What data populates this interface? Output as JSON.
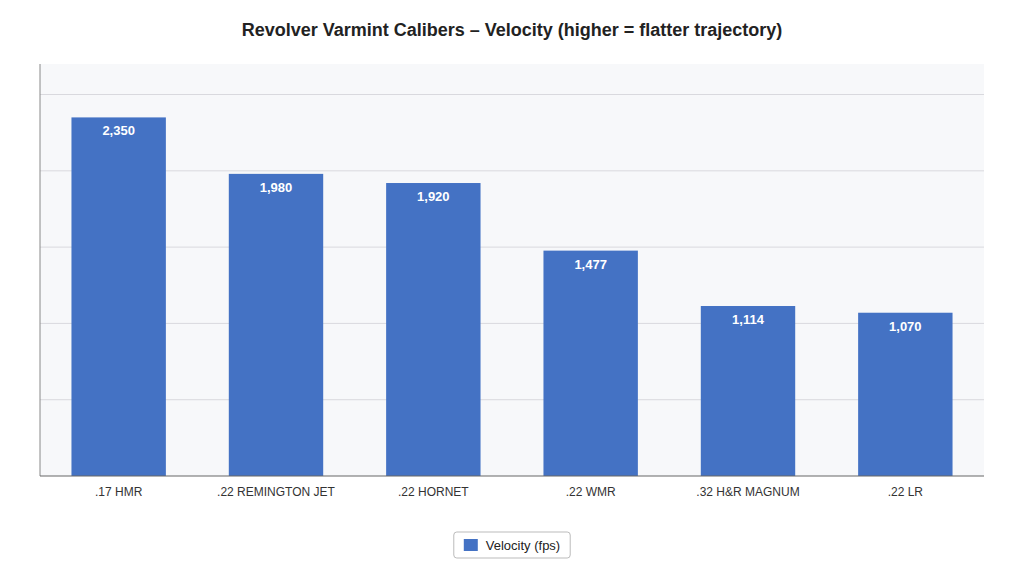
{
  "chart_data": {
    "type": "bar",
    "title": "Revolver Varmint Calibers – Velocity (higher = flatter trajectory)",
    "categories": [
      ".17 HMR",
      ".22 REMINGTON JET",
      ".22 HORNET",
      ".22 WMR",
      ".32 H&R MAGNUM",
      ".22 LR"
    ],
    "series": [
      {
        "name": "Velocity (fps)",
        "color": "#4472C4",
        "values": [
          2350,
          1980,
          1920,
          1477,
          1114,
          1070
        ],
        "value_labels": [
          "2,350",
          "1,980",
          "1,920",
          "1,477",
          "1,114",
          "1,070"
        ]
      }
    ],
    "ylim": [
      0,
      2700
    ],
    "yticks": [
      500,
      1000,
      1500,
      2000,
      2500
    ],
    "grid": true,
    "data_labels": true,
    "tick_labels": "x",
    "legend": "bottom"
  }
}
